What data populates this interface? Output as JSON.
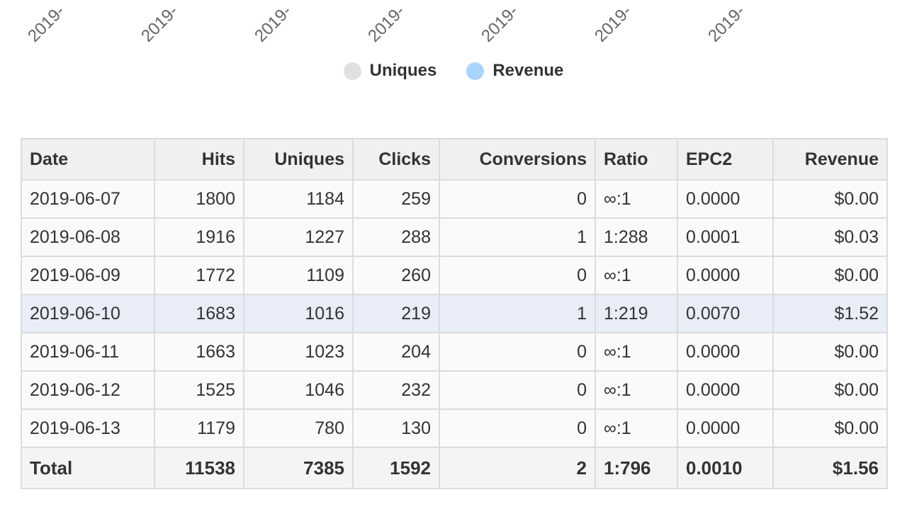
{
  "colors": {
    "uniques_series": "#e0e0e0",
    "revenue_series": "#a8d4fb",
    "highlight_row": "#e8edf7",
    "header_bg": "#f0f0f0",
    "border": "#dcdcdc"
  },
  "chart": {
    "x_tick_labels": [
      "2019-",
      "2019-",
      "2019-",
      "2019-",
      "2019-",
      "2019-",
      "2019-"
    ],
    "legend": [
      {
        "label": "Uniques",
        "color": "#e0e0e0"
      },
      {
        "label": "Revenue",
        "color": "#a8d4fb"
      }
    ]
  },
  "table": {
    "headers": {
      "date": "Date",
      "hits": "Hits",
      "uniques": "Uniques",
      "clicks": "Clicks",
      "conversions": "Conversions",
      "ratio": "Ratio",
      "epc2": "EPC2",
      "revenue": "Revenue"
    },
    "rows": [
      {
        "date": "2019-06-07",
        "hits": "1800",
        "uniques": "1184",
        "clicks": "259",
        "conversions": "0",
        "ratio": "∞:1",
        "epc2": "0.0000",
        "revenue": "$0.00"
      },
      {
        "date": "2019-06-08",
        "hits": "1916",
        "uniques": "1227",
        "clicks": "288",
        "conversions": "1",
        "ratio": "1:288",
        "epc2": "0.0001",
        "revenue": "$0.03"
      },
      {
        "date": "2019-06-09",
        "hits": "1772",
        "uniques": "1109",
        "clicks": "260",
        "conversions": "0",
        "ratio": "∞:1",
        "epc2": "0.0000",
        "revenue": "$0.00"
      },
      {
        "date": "2019-06-10",
        "hits": "1683",
        "uniques": "1016",
        "clicks": "219",
        "conversions": "1",
        "ratio": "1:219",
        "epc2": "0.0070",
        "revenue": "$1.52"
      },
      {
        "date": "2019-06-11",
        "hits": "1663",
        "uniques": "1023",
        "clicks": "204",
        "conversions": "0",
        "ratio": "∞:1",
        "epc2": "0.0000",
        "revenue": "$0.00"
      },
      {
        "date": "2019-06-12",
        "hits": "1525",
        "uniques": "1046",
        "clicks": "232",
        "conversions": "0",
        "ratio": "∞:1",
        "epc2": "0.0000",
        "revenue": "$0.00"
      },
      {
        "date": "2019-06-13",
        "hits": "1179",
        "uniques": "780",
        "clicks": "130",
        "conversions": "0",
        "ratio": "∞:1",
        "epc2": "0.0000",
        "revenue": "$0.00"
      }
    ],
    "total": {
      "date": "Total",
      "hits": "11538",
      "uniques": "7385",
      "clicks": "1592",
      "conversions": "2",
      "ratio": "1:796",
      "epc2": "0.0010",
      "revenue": "$1.56"
    }
  }
}
